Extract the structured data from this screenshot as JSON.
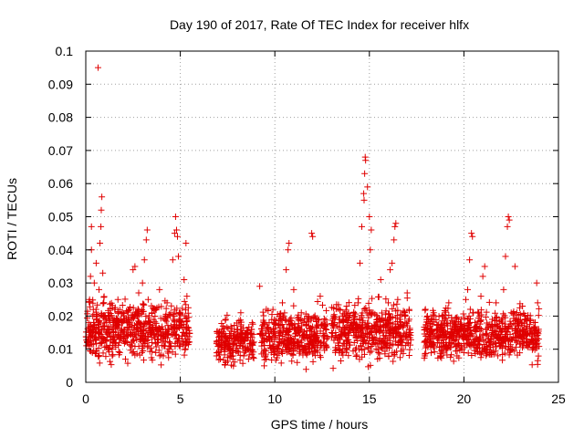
{
  "chart_data": {
    "type": "scatter",
    "title": "Day 190 of 2017, Rate Of TEC Index for receiver hlfx",
    "xlabel": "GPS time / hours",
    "ylabel": "ROTI / TECUs",
    "xlim": [
      0,
      25
    ],
    "ylim": [
      0,
      0.1
    ],
    "xticks": [
      "0",
      "5",
      "10",
      "15",
      "20",
      "25"
    ],
    "yticks": [
      "0",
      "0.01",
      "0.02",
      "0.03",
      "0.04",
      "0.05",
      "0.06",
      "0.07",
      "0.08",
      "0.09",
      "0.1"
    ],
    "grid": true,
    "marker": "plus",
    "color": "#e00000",
    "series": [
      {
        "name": "ROTI",
        "points": [
          [
            0.1,
            0.012
          ],
          [
            0.15,
            0.018
          ],
          [
            0.2,
            0.025
          ],
          [
            0.25,
            0.032
          ],
          [
            0.3,
            0.04
          ],
          [
            0.3,
            0.047
          ],
          [
            0.35,
            0.009
          ],
          [
            0.4,
            0.022
          ],
          [
            0.45,
            0.03
          ],
          [
            0.5,
            0.015
          ],
          [
            0.55,
            0.036
          ],
          [
            0.6,
            0.02
          ],
          [
            0.65,
            0.095
          ],
          [
            0.7,
            0.028
          ],
          [
            0.75,
            0.042
          ],
          [
            0.8,
            0.047
          ],
          [
            0.82,
            0.052
          ],
          [
            0.85,
            0.056
          ],
          [
            0.9,
            0.033
          ],
          [
            0.95,
            0.024
          ],
          [
            1.0,
            0.017
          ],
          [
            1.1,
            0.011
          ],
          [
            1.2,
            0.021
          ],
          [
            1.3,
            0.014
          ],
          [
            1.4,
            0.008
          ],
          [
            1.5,
            0.019
          ],
          [
            1.6,
            0.012
          ],
          [
            1.7,
            0.025
          ],
          [
            1.8,
            0.009
          ],
          [
            1.9,
            0.016
          ],
          [
            2.0,
            0.013
          ],
          [
            2.1,
            0.007
          ],
          [
            2.2,
            0.018
          ],
          [
            2.3,
            0.022
          ],
          [
            2.4,
            0.011
          ],
          [
            2.5,
            0.034
          ],
          [
            2.6,
            0.035
          ],
          [
            2.7,
            0.02
          ],
          [
            2.8,
            0.027
          ],
          [
            2.9,
            0.014
          ],
          [
            3.0,
            0.03
          ],
          [
            3.1,
            0.037
          ],
          [
            3.2,
            0.043
          ],
          [
            3.25,
            0.046
          ],
          [
            3.3,
            0.025
          ],
          [
            3.4,
            0.018
          ],
          [
            3.5,
            0.012
          ],
          [
            3.6,
            0.022
          ],
          [
            3.7,
            0.009
          ],
          [
            3.8,
            0.016
          ],
          [
            3.9,
            0.028
          ],
          [
            4.0,
            0.013
          ],
          [
            4.1,
            0.008
          ],
          [
            4.2,
            0.019
          ],
          [
            4.3,
            0.024
          ],
          [
            4.4,
            0.011
          ],
          [
            4.5,
            0.017
          ],
          [
            4.6,
            0.037
          ],
          [
            4.7,
            0.045
          ],
          [
            4.75,
            0.05
          ],
          [
            4.8,
            0.046
          ],
          [
            4.85,
            0.044
          ],
          [
            4.9,
            0.038
          ],
          [
            5.0,
            0.021
          ],
          [
            5.1,
            0.014
          ],
          [
            5.2,
            0.031
          ],
          [
            5.3,
            0.042
          ],
          [
            5.35,
            0.026
          ],
          [
            5.4,
            0.012
          ],
          [
            7.0,
            0.009
          ],
          [
            7.2,
            0.014
          ],
          [
            7.4,
            0.019
          ],
          [
            7.6,
            0.011
          ],
          [
            7.8,
            0.008
          ],
          [
            8.0,
            0.016
          ],
          [
            8.2,
            0.021
          ],
          [
            8.4,
            0.013
          ],
          [
            8.6,
            0.01
          ],
          [
            8.8,
            0.018
          ],
          [
            9.2,
            0.029
          ],
          [
            9.3,
            0.012
          ],
          [
            9.5,
            0.008
          ],
          [
            9.7,
            0.018
          ],
          [
            9.9,
            0.022
          ],
          [
            10.2,
            0.011
          ],
          [
            10.4,
            0.024
          ],
          [
            10.6,
            0.034
          ],
          [
            10.7,
            0.04
          ],
          [
            10.75,
            0.042
          ],
          [
            10.8,
            0.019
          ],
          [
            11.0,
            0.028
          ],
          [
            11.2,
            0.015
          ],
          [
            11.4,
            0.021
          ],
          [
            11.6,
            0.009
          ],
          [
            11.8,
            0.017
          ],
          [
            11.95,
            0.045
          ],
          [
            12.0,
            0.044
          ],
          [
            12.2,
            0.013
          ],
          [
            12.4,
            0.026
          ],
          [
            12.6,
            0.011
          ],
          [
            13.0,
            0.015
          ],
          [
            13.2,
            0.009
          ],
          [
            13.4,
            0.019
          ],
          [
            13.6,
            0.011
          ],
          [
            13.8,
            0.023
          ],
          [
            14.0,
            0.016
          ],
          [
            14.2,
            0.012
          ],
          [
            14.4,
            0.024
          ],
          [
            14.5,
            0.036
          ],
          [
            14.6,
            0.047
          ],
          [
            14.7,
            0.057
          ],
          [
            14.72,
            0.055
          ],
          [
            14.75,
            0.063
          ],
          [
            14.78,
            0.068
          ],
          [
            14.8,
            0.067
          ],
          [
            14.9,
            0.059
          ],
          [
            15.0,
            0.05
          ],
          [
            15.05,
            0.04
          ],
          [
            15.1,
            0.046
          ],
          [
            15.2,
            0.021
          ],
          [
            15.4,
            0.016
          ],
          [
            15.6,
            0.031
          ],
          [
            15.8,
            0.012
          ],
          [
            16.0,
            0.024
          ],
          [
            16.1,
            0.034
          ],
          [
            16.2,
            0.036
          ],
          [
            16.3,
            0.043
          ],
          [
            16.35,
            0.047
          ],
          [
            16.4,
            0.048
          ],
          [
            16.5,
            0.025
          ],
          [
            16.6,
            0.019
          ],
          [
            16.8,
            0.014
          ],
          [
            17.0,
            0.027
          ],
          [
            17.1,
            0.022
          ],
          [
            18.0,
            0.011
          ],
          [
            18.2,
            0.016
          ],
          [
            18.4,
            0.021
          ],
          [
            18.6,
            0.012
          ],
          [
            18.8,
            0.008
          ],
          [
            19.0,
            0.019
          ],
          [
            19.2,
            0.024
          ],
          [
            19.4,
            0.014
          ],
          [
            19.6,
            0.011
          ],
          [
            19.8,
            0.017
          ],
          [
            20.0,
            0.009
          ],
          [
            20.1,
            0.025
          ],
          [
            20.2,
            0.028
          ],
          [
            20.3,
            0.037
          ],
          [
            20.4,
            0.045
          ],
          [
            20.45,
            0.044
          ],
          [
            20.5,
            0.021
          ],
          [
            20.7,
            0.016
          ],
          [
            20.9,
            0.026
          ],
          [
            21.0,
            0.032
          ],
          [
            21.1,
            0.035
          ],
          [
            21.3,
            0.012
          ],
          [
            21.5,
            0.019
          ],
          [
            21.7,
            0.024
          ],
          [
            21.9,
            0.011
          ],
          [
            22.1,
            0.028
          ],
          [
            22.2,
            0.038
          ],
          [
            22.3,
            0.047
          ],
          [
            22.35,
            0.05
          ],
          [
            22.4,
            0.049
          ],
          [
            22.5,
            0.021
          ],
          [
            22.7,
            0.035
          ],
          [
            22.9,
            0.017
          ],
          [
            23.1,
            0.023
          ],
          [
            23.3,
            0.012
          ],
          [
            23.5,
            0.019
          ],
          [
            23.7,
            0.014
          ],
          [
            23.85,
            0.03
          ],
          [
            23.9,
            0.024
          ]
        ],
        "bands": [
          {
            "x": [
              0.0,
              5.5
            ],
            "ylo": 0.004,
            "yhi": 0.028
          },
          {
            "x": [
              6.9,
              8.9
            ],
            "ylo": 0.003,
            "yhi": 0.021
          },
          {
            "x": [
              9.2,
              12.8
            ],
            "ylo": 0.003,
            "yhi": 0.025
          },
          {
            "x": [
              13.0,
              17.2
            ],
            "ylo": 0.003,
            "yhi": 0.028
          },
          {
            "x": [
              17.9,
              24.0
            ],
            "ylo": 0.004,
            "yhi": 0.025
          }
        ]
      }
    ]
  }
}
